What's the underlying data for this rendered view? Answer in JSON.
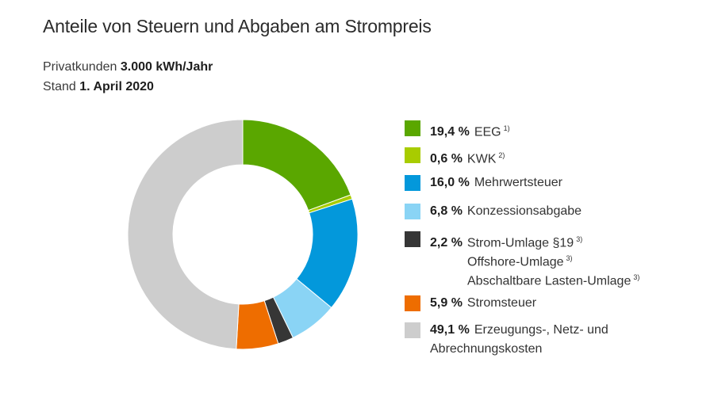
{
  "title": "Anteile von Steuern und Abgaben am Strompreis",
  "subtitle1": {
    "label": "Privatkunden",
    "value": "3.000 kWh/Jahr"
  },
  "subtitle2": {
    "label": "Stand",
    "value": "1. April 2020"
  },
  "chart_data": {
    "type": "pie",
    "donut": true,
    "start_angle_deg": 0,
    "direction": "clockwise",
    "slices": [
      {
        "label": "EEG",
        "value": 19.4,
        "pct_text": "19,4 %",
        "footnote": "1)",
        "color": "#5aa700"
      },
      {
        "label": "KWK",
        "value": 0.6,
        "pct_text": "0,6 %",
        "footnote": "2)",
        "color": "#a8cc00"
      },
      {
        "label": "Mehrwertsteuer",
        "value": 16.0,
        "pct_text": "16,0 %",
        "footnote": "",
        "color": "#0398db"
      },
      {
        "label": "Konzessionsabgabe",
        "value": 6.8,
        "pct_text": "6,8 %",
        "footnote": "",
        "color": "#8ad4f5"
      },
      {
        "label": "Strom-Umlage §19",
        "value": 2.2,
        "pct_text": "2,2 %",
        "footnote": "3)",
        "color": "#363636",
        "extra_lines": [
          {
            "text": "Offshore-Umlage",
            "footnote": "3)"
          },
          {
            "text": "Abschaltbare Lasten-Umlage",
            "footnote": "3)"
          }
        ]
      },
      {
        "label": "Stromsteuer",
        "value": 5.9,
        "pct_text": "5,9 %",
        "footnote": "",
        "color": "#ee6d00"
      },
      {
        "label": "Erzeugungs-, Netz- und",
        "value": 49.1,
        "pct_text": "49,1 %",
        "footnote": "",
        "color": "#cdcdcd",
        "extra_lines": [
          {
            "text": "Abrechnungskosten",
            "footnote": ""
          }
        ]
      }
    ]
  }
}
